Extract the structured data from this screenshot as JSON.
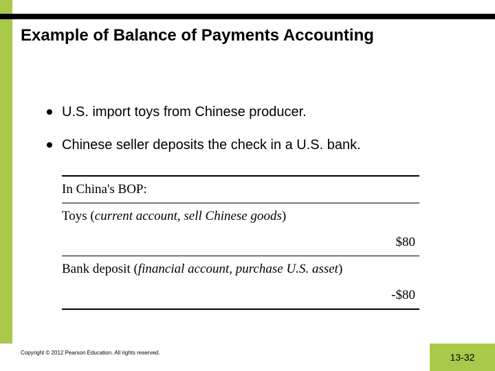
{
  "colors": {
    "accent_green": "#a8c94a",
    "black": "#000000",
    "background": "#ffffff"
  },
  "title": "Example of Balance of Payments Accounting",
  "bullets": [
    "U.S. import toys from Chinese producer.",
    "Chinese seller deposits the check in a U.S. bank."
  ],
  "table": {
    "header": "In China's BOP:",
    "rows": [
      {
        "label_prefix": "Toys (",
        "label_italic": "current account, sell Chinese goods",
        "label_suffix": ")",
        "value": "$80"
      },
      {
        "label_prefix": "Bank deposit (",
        "label_italic": "financial account, purchase U.S. asset",
        "label_suffix": ")",
        "value": "-$80"
      }
    ]
  },
  "copyright": "Copyright © 2012 Pearson Education. All rights reserved.",
  "page_number": "13-32"
}
